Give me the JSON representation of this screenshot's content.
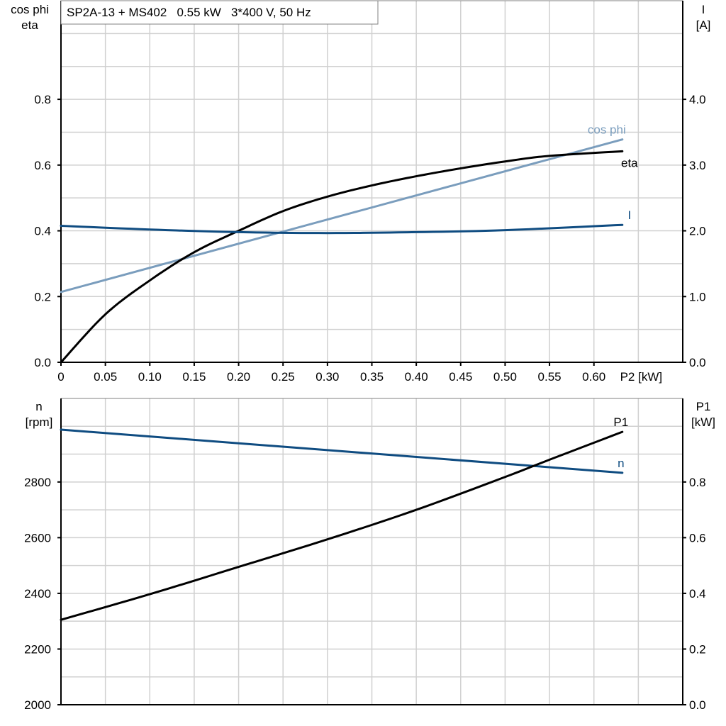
{
  "chart_data": [
    {
      "type": "line",
      "title": "SP2A-13 + MS402   0.55 kW   3*400 V, 50 Hz",
      "xlabel": "P2 [kW]",
      "ylabel_left": [
        "cos phi",
        "eta"
      ],
      "ylabel_right": [
        "I",
        "[A]"
      ],
      "xlim": [
        0,
        0.7
      ],
      "ylim_left": [
        0,
        1.1
      ],
      "ylim_right": [
        0,
        5.5
      ],
      "x_ticks": [
        "0",
        "0.05",
        "0.10",
        "0.15",
        "0.20",
        "0.25",
        "0.30",
        "0.35",
        "0.40",
        "0.45",
        "0.50",
        "0.55",
        "0.60"
      ],
      "y_ticks_left": [
        "0.0",
        "0.2",
        "0.4",
        "0.6",
        "0.8"
      ],
      "y_ticks_right": [
        "0.0",
        "1.0",
        "2.0",
        "3.0",
        "4.0"
      ],
      "grid": true,
      "series": [
        {
          "name": "cos phi",
          "axis": "left",
          "color": "#7a9dbd",
          "x": [
            0,
            0.632
          ],
          "y": [
            0.214,
            0.678
          ]
        },
        {
          "name": "eta",
          "axis": "left",
          "color": "#000000",
          "x": [
            0,
            0.05,
            0.1,
            0.15,
            0.2,
            0.25,
            0.3,
            0.35,
            0.4,
            0.45,
            0.5,
            0.55,
            0.632
          ],
          "y": [
            0,
            0.146,
            0.249,
            0.335,
            0.4,
            0.46,
            0.504,
            0.538,
            0.566,
            0.59,
            0.611,
            0.628,
            0.642
          ]
        },
        {
          "name": "I",
          "axis": "right",
          "color": "#0f4c81",
          "x": [
            0,
            0.1,
            0.2,
            0.3,
            0.4,
            0.5,
            0.632
          ],
          "y": [
            2.076,
            2.02,
            1.98,
            1.966,
            1.98,
            2.01,
            2.09
          ]
        }
      ]
    },
    {
      "type": "line",
      "ylabel_left": [
        "n",
        "[rpm]"
      ],
      "ylabel_right": [
        "P1",
        "[kW]"
      ],
      "xlim": [
        0,
        0.7
      ],
      "ylim_left": [
        2000,
        3100
      ],
      "ylim_right": [
        0,
        1.1
      ],
      "y_ticks_left": [
        "2000",
        "2200",
        "2400",
        "2600",
        "2800"
      ],
      "y_ticks_right": [
        "0.0",
        "0.2",
        "0.4",
        "0.6",
        "0.8"
      ],
      "grid": true,
      "series": [
        {
          "name": "n",
          "axis": "left",
          "color": "#0f4c81",
          "x": [
            0,
            0.632
          ],
          "y": [
            2988,
            2833
          ]
        },
        {
          "name": "P1",
          "axis": "right",
          "color": "#000000",
          "x": [
            0,
            0.1,
            0.2,
            0.3,
            0.4,
            0.5,
            0.55,
            0.632
          ],
          "y": [
            0.305,
            0.397,
            0.495,
            0.594,
            0.7,
            0.818,
            0.88,
            0.98
          ]
        }
      ]
    }
  ]
}
